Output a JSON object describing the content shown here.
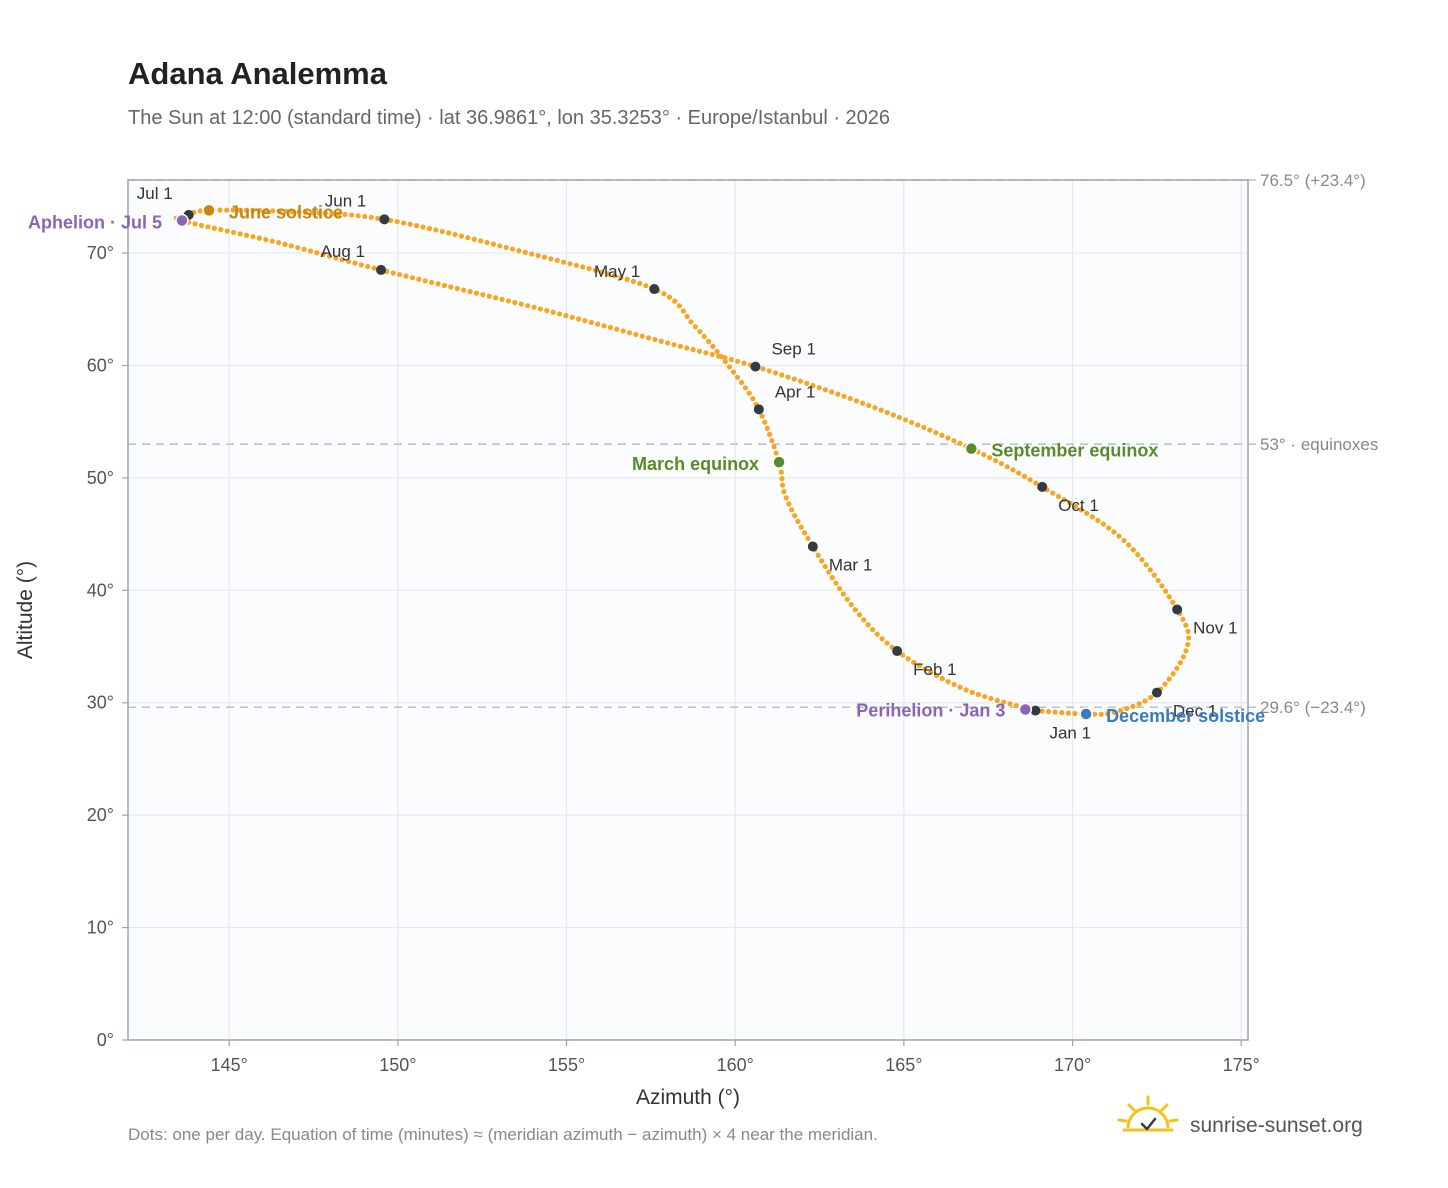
{
  "header": {
    "title": "Adana Analemma",
    "subtitle": "The Sun at 12:00 (standard time) · lat 36.9861°, lon 35.3253° · Europe/Istanbul · 2026"
  },
  "footer": {
    "note": "Dots: one per day. Equation of time (minutes) ≈ (meridian azimuth − azimuth) × 4 near the meridian.",
    "brand": "sunrise-sunset.org"
  },
  "colors": {
    "curve": "#f5a623",
    "month_dot": "#333a44",
    "june_solstice": "#c8860a",
    "december_solstice": "#3a7bbf",
    "equinox": "#5a8a2a",
    "apsis": "#8c64b4",
    "reference_line": "#b8c4cc",
    "plot_bg": "#fafcfe",
    "grid": "#e4e9ee",
    "frame": "#9aa6b4"
  },
  "chart_data": {
    "type": "scatter",
    "xlabel": "Azimuth (°)",
    "ylabel": "Altitude (°)",
    "xlim": [
      142,
      175.2
    ],
    "ylim": [
      0,
      76.5
    ],
    "x_ticks": [
      145,
      150,
      155,
      160,
      165,
      170,
      175
    ],
    "x_tick_labels": [
      "145°",
      "150°",
      "155°",
      "160°",
      "165°",
      "170°",
      "175°"
    ],
    "y_ticks": [
      0,
      10,
      20,
      30,
      40,
      50,
      60,
      70
    ],
    "y_tick_labels": [
      "0°",
      "10°",
      "20°",
      "30°",
      "40°",
      "50°",
      "60°",
      "70°"
    ],
    "grid": true,
    "reference_lines": [
      {
        "y": 76.5,
        "label": "76.5° (+23.4°)"
      },
      {
        "y": 53.0,
        "label": "53° · equinoxes"
      },
      {
        "y": 29.6,
        "label": "29.6° (−23.4°)"
      }
    ],
    "month_markers": [
      {
        "label": "Jan 1",
        "az": 168.9,
        "alt": 29.3
      },
      {
        "label": "Feb 1",
        "az": 164.8,
        "alt": 34.6
      },
      {
        "label": "Mar 1",
        "az": 162.3,
        "alt": 43.9
      },
      {
        "label": "Apr 1",
        "az": 160.7,
        "alt": 56.1
      },
      {
        "label": "May 1",
        "az": 157.6,
        "alt": 66.8
      },
      {
        "label": "Jun 1",
        "az": 149.6,
        "alt": 73.0
      },
      {
        "label": "Jul 1",
        "az": 143.8,
        "alt": 73.4
      },
      {
        "label": "Aug 1",
        "az": 149.5,
        "alt": 68.5
      },
      {
        "label": "Sep 1",
        "az": 160.6,
        "alt": 59.9
      },
      {
        "label": "Oct 1",
        "az": 169.1,
        "alt": 49.2
      },
      {
        "label": "Nov 1",
        "az": 173.1,
        "alt": 38.3
      },
      {
        "label": "Dec 1",
        "az": 172.5,
        "alt": 30.9
      }
    ],
    "events": [
      {
        "key": "june_solstice",
        "label": "June solstice",
        "az": 144.4,
        "alt": 73.8
      },
      {
        "key": "december_solstice",
        "label": "December solstice",
        "az": 170.4,
        "alt": 29.0
      },
      {
        "key": "march_equinox",
        "label": "March equinox",
        "az": 161.3,
        "alt": 51.4
      },
      {
        "key": "september_equinox",
        "label": "September equinox",
        "az": 167.0,
        "alt": 52.6
      },
      {
        "key": "aphelion",
        "label": "Aphelion · Jul 5",
        "az": 143.6,
        "alt": 72.9
      },
      {
        "key": "perihelion",
        "label": "Perihelion · Jan 3",
        "az": 168.6,
        "alt": 29.4
      }
    ],
    "daily_curve_path": [
      [
        168.9,
        29.3
      ],
      [
        166.8,
        31.2
      ],
      [
        164.8,
        34.6
      ],
      [
        163.5,
        38.5
      ],
      [
        162.3,
        43.9
      ],
      [
        161.5,
        48.3
      ],
      [
        161.3,
        51.4
      ],
      [
        160.7,
        56.1
      ],
      [
        159.9,
        59.6
      ],
      [
        158.8,
        63.5
      ],
      [
        157.6,
        66.8
      ],
      [
        153.6,
        70.2
      ],
      [
        149.6,
        73.0
      ],
      [
        146.7,
        73.7
      ],
      [
        144.4,
        73.8
      ],
      [
        143.8,
        73.4
      ],
      [
        143.6,
        72.9
      ],
      [
        146.5,
        70.9
      ],
      [
        149.5,
        68.5
      ],
      [
        154.0,
        65.2
      ],
      [
        158.0,
        62.0
      ],
      [
        160.6,
        59.9
      ],
      [
        164.0,
        56.4
      ],
      [
        167.0,
        52.6
      ],
      [
        169.1,
        49.2
      ],
      [
        171.5,
        44.5
      ],
      [
        173.1,
        38.3
      ],
      [
        173.4,
        35.0
      ],
      [
        172.5,
        30.9
      ],
      [
        171.3,
        29.2
      ],
      [
        170.4,
        29.0
      ],
      [
        168.9,
        29.3
      ]
    ]
  }
}
